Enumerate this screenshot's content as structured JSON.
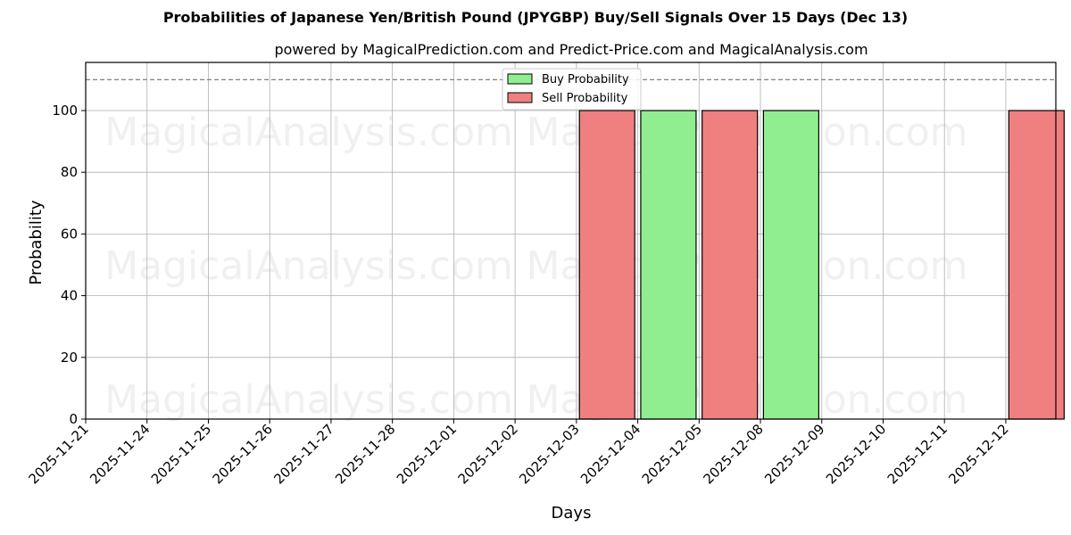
{
  "chart_data": {
    "type": "bar",
    "title": "Probabilities of Japanese Yen/British Pound (JPYGBP) Buy/Sell Signals Over 15 Days (Dec 13)",
    "subtitle": "powered by MagicalPrediction.com and Predict-Price.com and MagicalAnalysis.com",
    "xlabel": "Days",
    "ylabel": "Probability",
    "ylim": [
      0,
      115
    ],
    "yticks": [
      0,
      20,
      40,
      60,
      80,
      100
    ],
    "grid": true,
    "threshold_line": {
      "y": 110,
      "style": "dashed",
      "color": "#808080"
    },
    "categories": [
      "2025-11-21",
      "2025-11-24",
      "2025-11-25",
      "2025-11-26",
      "2025-11-27",
      "2025-11-28",
      "2025-12-01",
      "2025-12-02",
      "2025-12-03",
      "2025-12-04",
      "2025-12-05",
      "2025-12-08",
      "2025-12-09",
      "2025-12-10",
      "2025-12-11",
      "2025-12-12"
    ],
    "series": [
      {
        "name": "Buy Probability",
        "color": "#90ee90",
        "values": [
          0,
          0,
          0,
          0,
          0,
          0,
          0,
          0,
          0,
          100,
          0,
          100,
          0,
          0,
          0,
          0
        ]
      },
      {
        "name": "Sell Probability",
        "color": "#f08080",
        "values": [
          0,
          0,
          0,
          0,
          0,
          0,
          0,
          0,
          100,
          0,
          100,
          0,
          0,
          0,
          0,
          100
        ]
      }
    ],
    "legend": {
      "position": "upper center",
      "entries": [
        "Buy Probability",
        "Sell Probability"
      ]
    },
    "watermarks": [
      "MagicalAnalysis.com",
      "MagicalPrediction.com"
    ]
  }
}
